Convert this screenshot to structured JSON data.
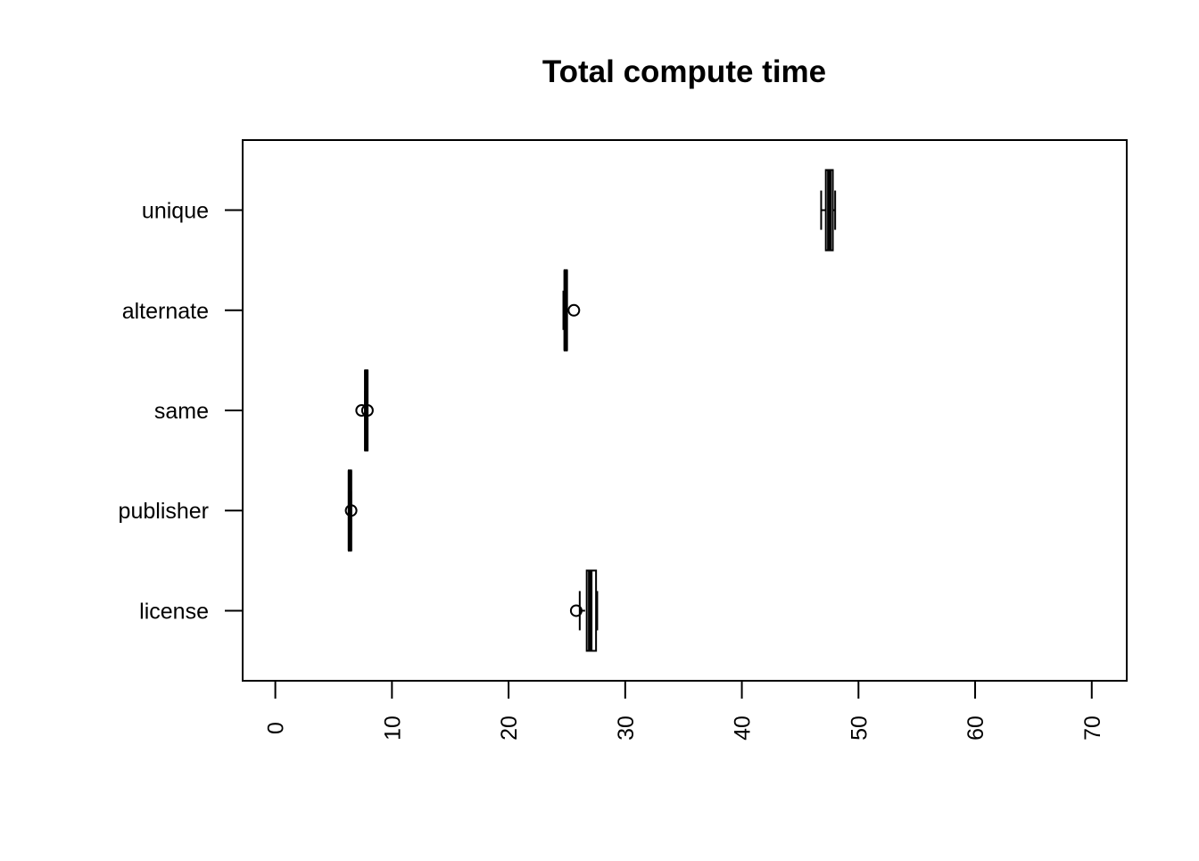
{
  "chart_data": {
    "type": "boxplot",
    "orientation": "horizontal",
    "title": "Total compute time",
    "xlabel": "",
    "ylabel": "",
    "xlim": [
      -2.8,
      73
    ],
    "x_ticks": [
      0,
      10,
      20,
      30,
      40,
      50,
      60,
      70
    ],
    "x_tick_labels": [
      "0",
      "10",
      "20",
      "30",
      "40",
      "50",
      "60",
      "70"
    ],
    "categories": [
      "license",
      "publisher",
      "same",
      "alternate",
      "unique"
    ],
    "boxes": [
      {
        "label": "license",
        "whisker_low": 26.1,
        "q1": 26.7,
        "median": 27.0,
        "q3": 27.5,
        "whisker_high": 27.6,
        "outliers": [
          25.8
        ]
      },
      {
        "label": "publisher",
        "whisker_low": 6.3,
        "q1": 6.3,
        "median": 6.4,
        "q3": 6.5,
        "whisker_high": 6.5,
        "outliers": [
          6.5
        ]
      },
      {
        "label": "same",
        "whisker_low": 7.7,
        "q1": 7.7,
        "median": 7.8,
        "q3": 7.9,
        "whisker_high": 7.9,
        "outliers": [
          7.4,
          7.9
        ]
      },
      {
        "label": "alternate",
        "whisker_low": 24.7,
        "q1": 24.8,
        "median": 24.9,
        "q3": 25.0,
        "whisker_high": 25.0,
        "outliers": [
          25.6
        ]
      },
      {
        "label": "unique",
        "whisker_low": 46.8,
        "q1": 47.2,
        "median": 47.5,
        "q3": 47.8,
        "whisker_high": 48.0,
        "outliers": []
      }
    ],
    "grid": false,
    "legend": "none",
    "colors": {
      "stroke": "#000000",
      "fill": "#ffffff",
      "background": "#ffffff"
    }
  }
}
